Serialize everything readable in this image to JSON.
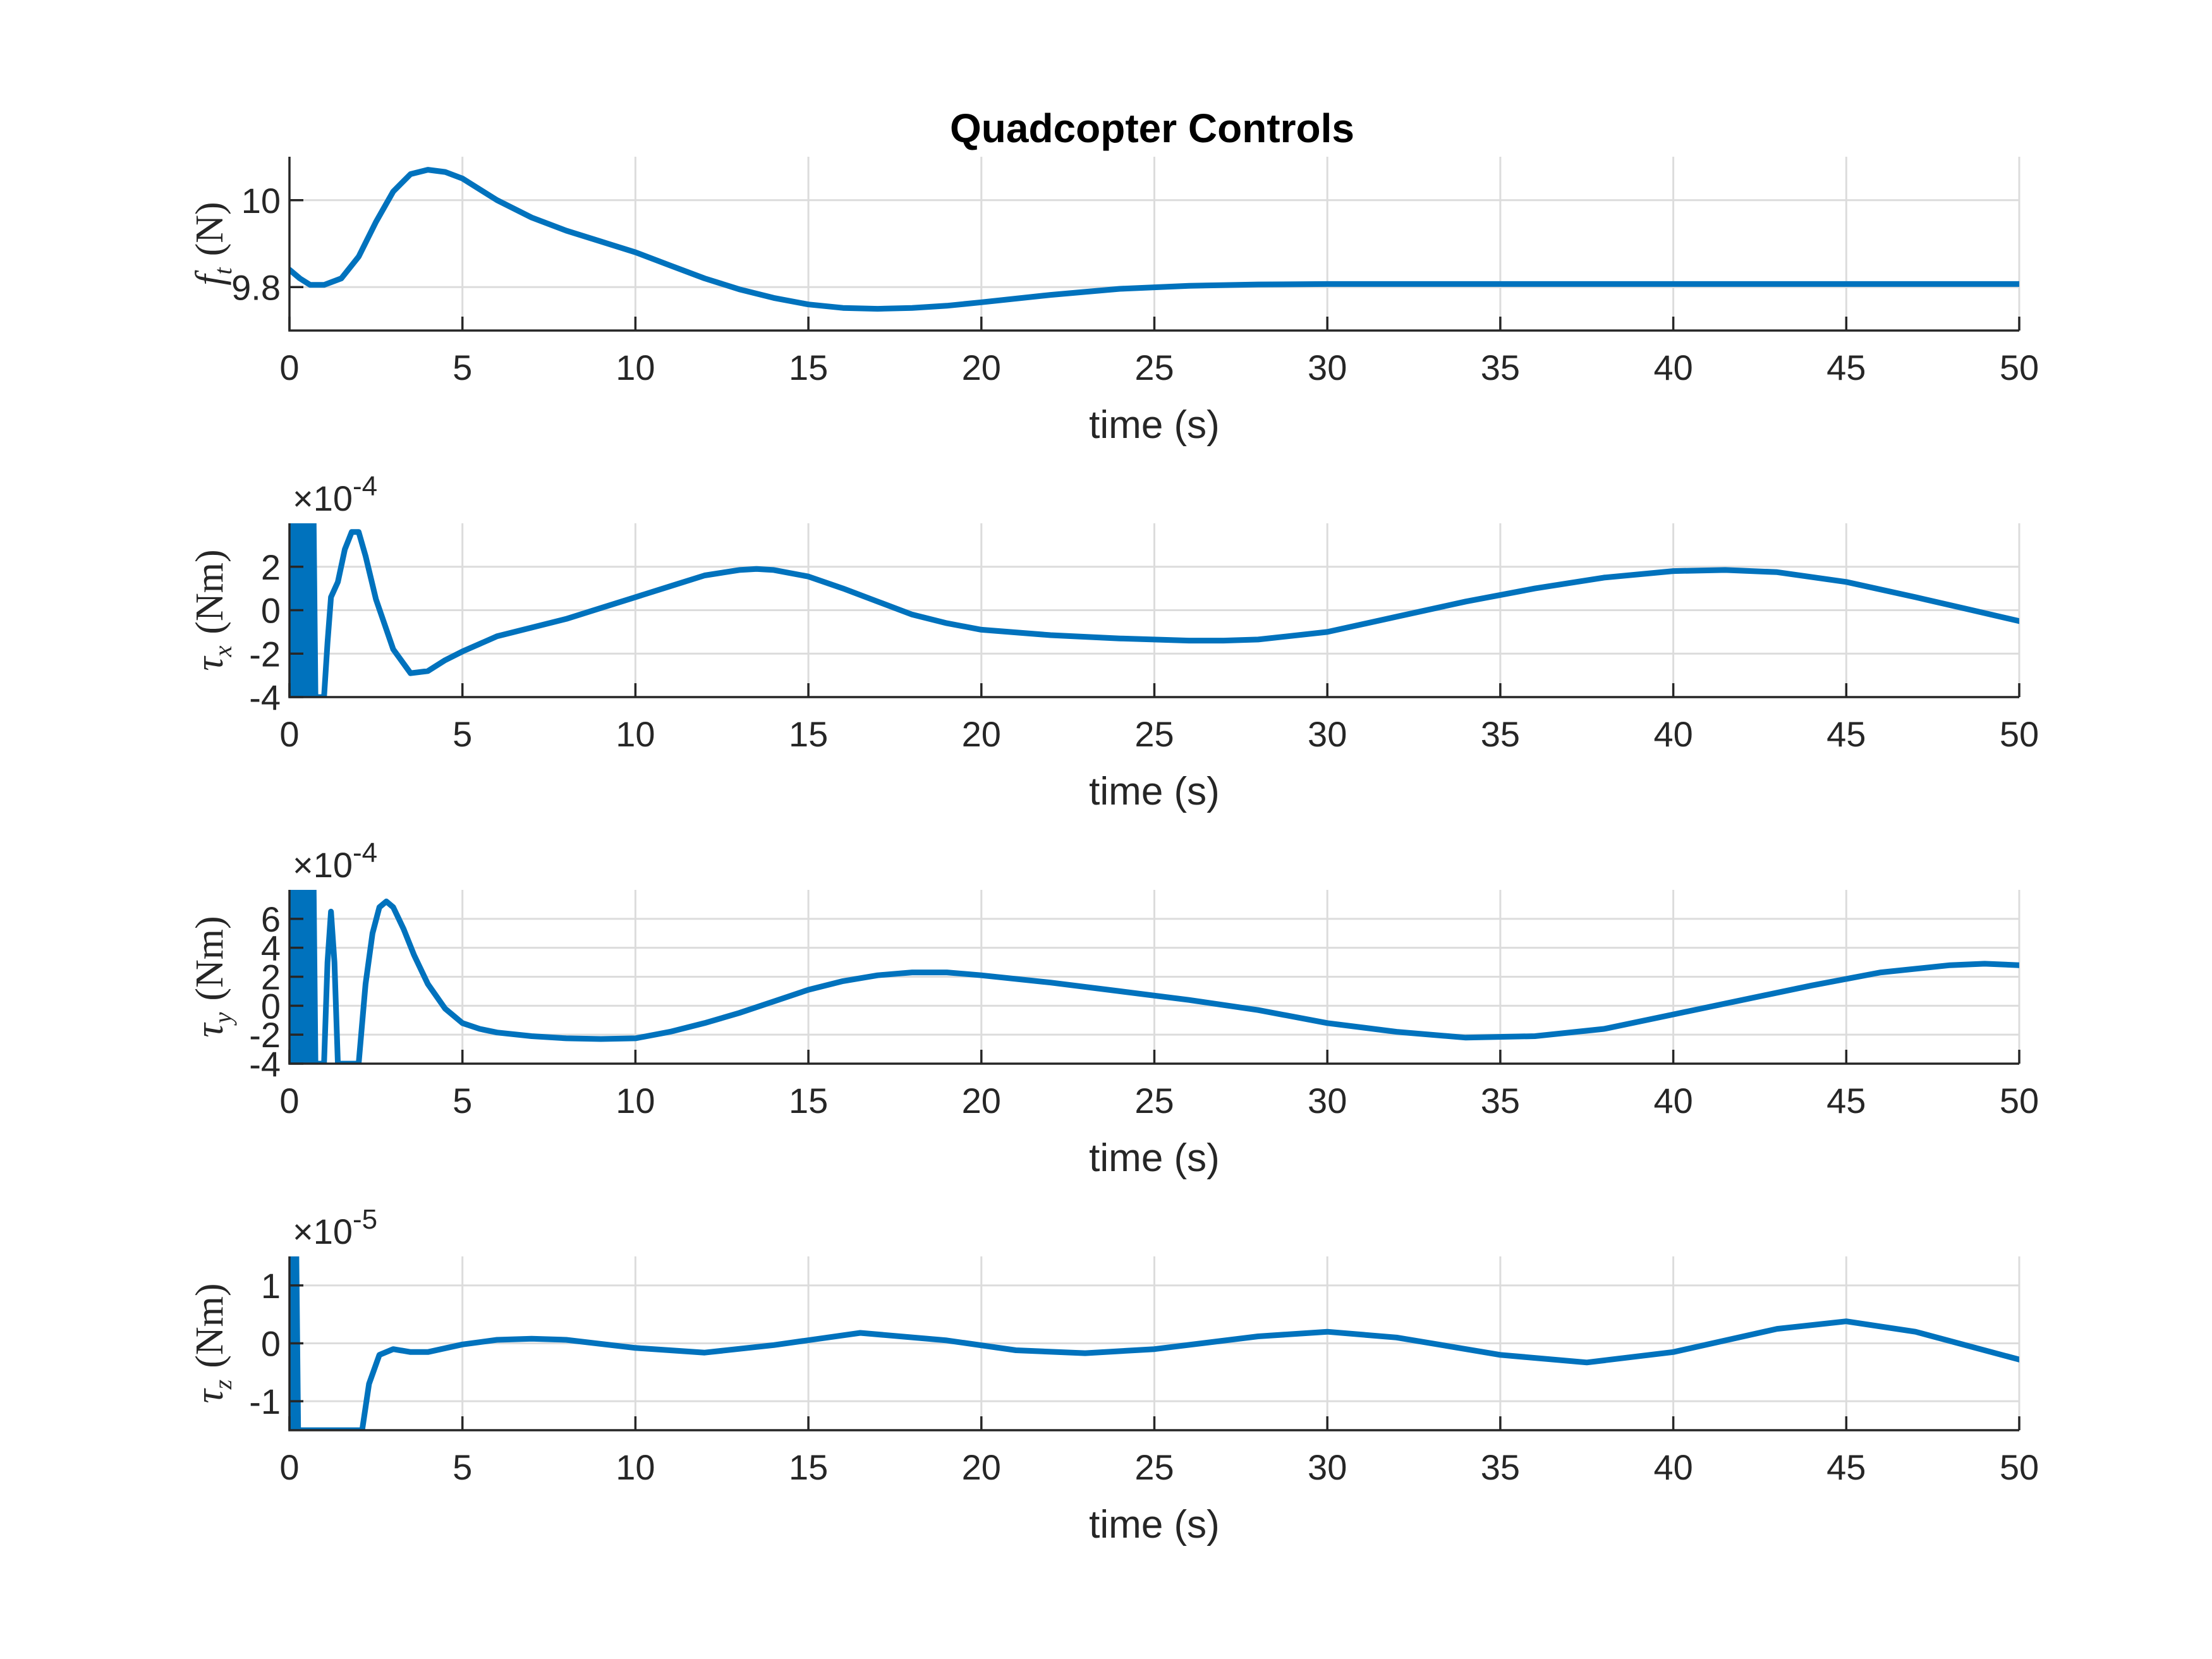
{
  "title": "Quadcopter Controls",
  "colors": {
    "line": "#0072BD",
    "axis": "#262626",
    "grid": "#dcdcdc"
  },
  "chart_data": [
    {
      "type": "line",
      "ylabel": {
        "base": "f",
        "sub": "t",
        "unit": "(N)"
      },
      "xlabel": "time (s)",
      "xlim": [
        0,
        50
      ],
      "ylim": [
        9.7,
        10.1
      ],
      "xticks": [
        0,
        5,
        10,
        15,
        20,
        25,
        30,
        35,
        40,
        45,
        50
      ],
      "xtick_labels": [
        "0",
        "5",
        "10",
        "15",
        "20",
        "25",
        "30",
        "35",
        "40",
        "45",
        "50"
      ],
      "yticks": [
        9.8,
        10.0
      ],
      "ytick_labels": [
        "9.8",
        "10"
      ],
      "grid": true,
      "exponent": "",
      "series": [
        {
          "x": [
            0,
            0.3,
            0.6,
            1.0,
            1.5,
            2.0,
            2.5,
            3.0,
            3.5,
            4.0,
            4.5,
            5.0,
            6.0,
            7.0,
            8.0,
            9.0,
            10.0,
            11.0,
            12.0,
            13.0,
            14.0,
            15.0,
            16.0,
            17.0,
            18.0,
            19.0,
            20.0,
            22.0,
            24.0,
            26.0,
            28.0,
            30.0,
            35.0,
            40.0,
            45.0,
            50.0
          ],
          "y": [
            9.84,
            9.82,
            9.805,
            9.805,
            9.82,
            9.87,
            9.95,
            10.02,
            10.06,
            10.07,
            10.065,
            10.05,
            10.0,
            9.96,
            9.93,
            9.905,
            9.88,
            9.85,
            9.82,
            9.795,
            9.775,
            9.76,
            9.752,
            9.75,
            9.752,
            9.757,
            9.765,
            9.782,
            9.796,
            9.803,
            9.806,
            9.807,
            9.807,
            9.807,
            9.807,
            9.807
          ]
        }
      ]
    },
    {
      "type": "line",
      "ylabel": {
        "base": "τ",
        "sub": "x",
        "unit": "(Nm)"
      },
      "xlabel": "time (s)",
      "xlim": [
        0,
        50
      ],
      "ylim": [
        -4,
        4
      ],
      "xticks": [
        0,
        5,
        10,
        15,
        20,
        25,
        30,
        35,
        40,
        45,
        50
      ],
      "xtick_labels": [
        "0",
        "5",
        "10",
        "15",
        "20",
        "25",
        "30",
        "35",
        "40",
        "45",
        "50"
      ],
      "yticks": [
        -4,
        -2,
        0,
        2
      ],
      "ytick_labels": [
        "-4",
        "-2",
        "0",
        "2"
      ],
      "grid": true,
      "exponent": "-4",
      "series": [
        {
          "x": [
            0,
            0.05,
            0.1,
            0.15,
            0.2,
            0.25,
            0.3,
            0.35,
            0.4,
            0.45,
            0.5,
            0.55,
            0.6,
            0.65,
            0.7,
            0.75,
            0.8,
            0.85,
            0.9,
            1.0,
            1.1,
            1.2,
            1.4,
            1.6,
            1.8,
            2.0,
            2.2,
            2.5,
            3.0,
            3.5,
            4.0,
            4.5,
            5.0,
            6.0,
            7.0,
            8.0,
            9.0,
            10.0,
            11.0,
            12.0,
            13.0,
            13.5,
            14.0,
            15.0,
            16.0,
            17.0,
            18.0,
            19.0,
            20.0,
            22.0,
            24.0,
            26.0,
            27.0,
            28.0,
            30.0,
            32.0,
            34.0,
            36.0,
            38.0,
            40.0,
            41.5,
            43.0,
            45.0,
            47.0,
            48.5,
            50.0
          ],
          "y": [
            4,
            -4,
            4,
            -4,
            4,
            -4,
            4,
            -4,
            4,
            -4,
            4,
            -4,
            4,
            -4,
            4,
            -4,
            -4,
            -4,
            -4,
            -4,
            -1.5,
            0.6,
            1.3,
            2.8,
            3.6,
            3.6,
            2.5,
            0.5,
            -1.8,
            -2.9,
            -2.8,
            -2.3,
            -1.9,
            -1.2,
            -0.8,
            -0.4,
            0.1,
            0.6,
            1.1,
            1.6,
            1.85,
            1.9,
            1.85,
            1.55,
            1.0,
            0.4,
            -0.2,
            -0.6,
            -0.9,
            -1.15,
            -1.3,
            -1.4,
            -1.4,
            -1.35,
            -1.0,
            -0.3,
            0.4,
            1.0,
            1.5,
            1.8,
            1.85,
            1.75,
            1.3,
            0.6,
            0.05,
            -0.5
          ]
        }
      ]
    },
    {
      "type": "line",
      "ylabel": {
        "base": "τ",
        "sub": "y",
        "unit": "(Nm)"
      },
      "xlabel": "time (s)",
      "xlim": [
        0,
        50
      ],
      "ylim": [
        -4,
        8
      ],
      "xticks": [
        0,
        5,
        10,
        15,
        20,
        25,
        30,
        35,
        40,
        45,
        50
      ],
      "xtick_labels": [
        "0",
        "5",
        "10",
        "15",
        "20",
        "25",
        "30",
        "35",
        "40",
        "45",
        "50"
      ],
      "yticks": [
        -4,
        -2,
        0,
        2,
        4,
        6
      ],
      "ytick_labels": [
        "-4",
        "-2",
        "0",
        "2",
        "4",
        "6"
      ],
      "grid": true,
      "exponent": "-4",
      "series": [
        {
          "x": [
            0,
            0.05,
            0.1,
            0.15,
            0.2,
            0.25,
            0.3,
            0.35,
            0.4,
            0.45,
            0.5,
            0.55,
            0.6,
            0.65,
            0.7,
            0.75,
            0.8,
            0.9,
            1.0,
            1.1,
            1.2,
            1.3,
            1.4,
            1.5,
            1.6,
            1.8,
            1.9,
            2.0,
            2.2,
            2.4,
            2.6,
            2.8,
            3.0,
            3.3,
            3.6,
            4.0,
            4.5,
            5.0,
            5.5,
            6.0,
            7.0,
            8.0,
            9.0,
            10.0,
            11.0,
            12.0,
            13.0,
            14.0,
            15.0,
            16.0,
            17.0,
            18.0,
            19.0,
            20.0,
            22.0,
            24.0,
            26.0,
            28.0,
            30.0,
            32.0,
            34.0,
            36.0,
            38.0,
            40.0,
            42.0,
            44.0,
            46.0,
            48.0,
            49.0,
            50.0
          ],
          "y": [
            8,
            -4,
            8,
            -4,
            8,
            -4,
            8,
            -4,
            8,
            -4,
            8,
            -4,
            8,
            -4,
            8,
            -4,
            -4,
            -4,
            -4,
            3,
            6.5,
            3,
            -4,
            -4,
            -4,
            -4,
            -4,
            -4,
            1.5,
            5.0,
            6.8,
            7.2,
            6.8,
            5.3,
            3.5,
            1.5,
            -0.2,
            -1.2,
            -1.6,
            -1.85,
            -2.1,
            -2.25,
            -2.3,
            -2.25,
            -1.8,
            -1.2,
            -0.5,
            0.3,
            1.1,
            1.7,
            2.1,
            2.3,
            2.3,
            2.1,
            1.6,
            1.0,
            0.4,
            -0.3,
            -1.2,
            -1.8,
            -2.2,
            -2.1,
            -1.6,
            -0.6,
            0.4,
            1.4,
            2.3,
            2.8,
            2.9,
            2.8
          ]
        }
      ]
    },
    {
      "type": "line",
      "ylabel": {
        "base": "τ",
        "sub": "z",
        "unit": "(Nm)"
      },
      "xlabel": "time (s)",
      "xlim": [
        0,
        50
      ],
      "ylim": [
        -1.5,
        1.5
      ],
      "xticks": [
        0,
        5,
        10,
        15,
        20,
        25,
        30,
        35,
        40,
        45,
        50
      ],
      "xtick_labels": [
        "0",
        "5",
        "10",
        "15",
        "20",
        "25",
        "30",
        "35",
        "40",
        "45",
        "50"
      ],
      "yticks": [
        -1,
        0,
        1
      ],
      "ytick_labels": [
        "-1",
        "0",
        "1"
      ],
      "grid": true,
      "exponent": "-5",
      "series": [
        {
          "x": [
            0,
            0.05,
            0.1,
            0.15,
            0.2,
            0.25,
            0.3,
            2.1,
            2.3,
            2.6,
            3.0,
            3.5,
            4.0,
            5.0,
            6.0,
            7.0,
            8.0,
            10.0,
            12.0,
            14.0,
            16.5,
            19.0,
            21.0,
            23.0,
            25.0,
            28.0,
            30.0,
            32.0,
            35.0,
            37.5,
            40.0,
            43.0,
            45.0,
            47.0,
            50.0
          ],
          "y": [
            1.5,
            -1.5,
            1.5,
            -1.5,
            1.5,
            -1.5,
            -1.5,
            -1.5,
            -0.7,
            -0.2,
            -0.1,
            -0.15,
            -0.15,
            -0.02,
            0.06,
            0.08,
            0.06,
            -0.08,
            -0.16,
            -0.03,
            0.18,
            0.05,
            -0.12,
            -0.17,
            -0.1,
            0.12,
            0.2,
            0.1,
            -0.2,
            -0.33,
            -0.15,
            0.25,
            0.38,
            0.2,
            -0.28
          ]
        }
      ]
    }
  ]
}
